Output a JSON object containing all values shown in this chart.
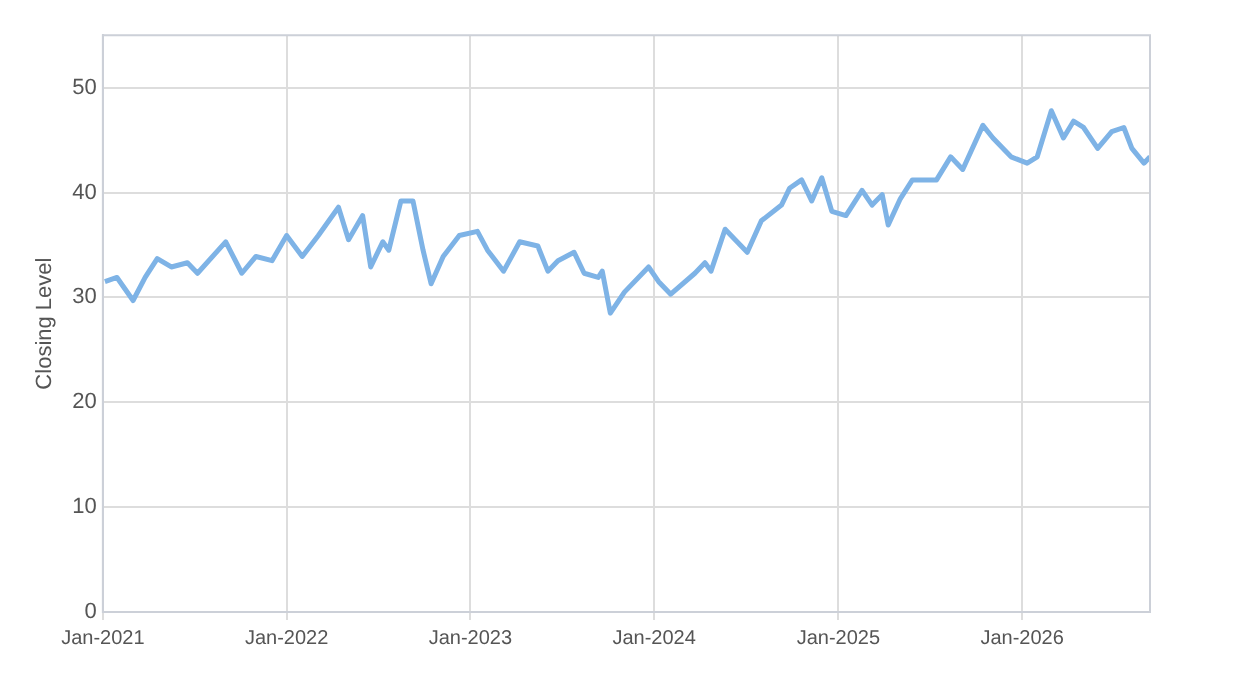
{
  "chart_data": {
    "type": "line",
    "ylabel": "Closing Level",
    "ylim": [
      0,
      55
    ],
    "yticks": [
      0,
      10,
      20,
      30,
      40,
      50
    ],
    "xlim": [
      "2021-01-01",
      "2026-09-12"
    ],
    "xticks": [
      {
        "value": "2021-01-01",
        "label": "Jan-2021"
      },
      {
        "value": "2022-01-01",
        "label": "Jan-2022"
      },
      {
        "value": "2023-01-01",
        "label": "Jan-2023"
      },
      {
        "value": "2024-01-01",
        "label": "Jan-2024"
      },
      {
        "value": "2025-01-01",
        "label": "Jan-2025"
      },
      {
        "value": "2026-01-01",
        "label": "Jan-2026"
      }
    ],
    "grid": true,
    "legend": false,
    "marker": "none",
    "line_style": "solid",
    "x": [
      "2021-01-05",
      "2021-01-29",
      "2021-03-02",
      "2021-03-26",
      "2021-04-19",
      "2021-05-17",
      "2021-06-18",
      "2021-07-08",
      "2021-09-02",
      "2021-10-04",
      "2021-11-01",
      "2021-12-03",
      "2022-01-01",
      "2022-02-01",
      "2022-03-05",
      "2022-04-14",
      "2022-05-04",
      "2022-06-01",
      "2022-06-17",
      "2022-07-11",
      "2022-07-23",
      "2022-08-16",
      "2022-09-09",
      "2022-09-29",
      "2022-10-15",
      "2022-11-08",
      "2022-12-10",
      "2023-01-15",
      "2023-02-04",
      "2023-03-08",
      "2023-04-09",
      "2023-05-15",
      "2023-06-04",
      "2023-06-24",
      "2023-07-26",
      "2023-08-15",
      "2023-09-12",
      "2023-09-20",
      "2023-10-06",
      "2023-11-03",
      "2023-12-21",
      "2024-01-10",
      "2024-02-03",
      "2024-03-22",
      "2024-04-11",
      "2024-04-23",
      "2024-05-21",
      "2024-06-10",
      "2024-07-04",
      "2024-08-01",
      "2024-09-10",
      "2024-09-26",
      "2024-10-20",
      "2024-11-09",
      "2024-11-29",
      "2024-12-19",
      "2025-01-16",
      "2025-02-17",
      "2025-03-09",
      "2025-03-29",
      "2025-04-10",
      "2025-05-04",
      "2025-05-28",
      "2025-07-15",
      "2025-08-12",
      "2025-09-05",
      "2025-10-15",
      "2025-11-04",
      "2025-12-10",
      "2026-01-11",
      "2026-01-31",
      "2026-02-28",
      "2026-03-24",
      "2026-04-13",
      "2026-05-03",
      "2026-05-31",
      "2026-06-28",
      "2026-07-22",
      "2026-08-07",
      "2026-08-31",
      "2026-09-12"
    ],
    "series": [
      {
        "color": "#7eb3e6",
        "values": [
          31.5,
          31.9,
          29.7,
          31.9,
          33.7,
          32.9,
          33.3,
          32.3,
          35.3,
          32.3,
          33.9,
          33.5,
          35.9,
          33.9,
          35.9,
          38.6,
          35.5,
          37.8,
          32.9,
          35.3,
          34.5,
          39.2,
          39.2,
          34.5,
          31.3,
          33.9,
          35.9,
          36.3,
          34.5,
          32.5,
          35.3,
          34.9,
          32.5,
          33.5,
          34.3,
          32.3,
          31.9,
          32.5,
          28.5,
          30.5,
          32.9,
          31.5,
          30.3,
          32.3,
          33.3,
          32.5,
          36.5,
          35.5,
          34.3,
          37.3,
          38.8,
          40.4,
          41.2,
          39.2,
          41.4,
          38.2,
          37.8,
          40.2,
          38.8,
          39.8,
          36.9,
          39.4,
          41.2,
          41.2,
          43.4,
          42.2,
          46.4,
          45.2,
          43.4,
          42.8,
          43.4,
          47.8,
          45.2,
          46.8,
          46.2,
          44.2,
          45.8,
          46.2,
          44.2,
          42.8,
          43.4
        ]
      }
    ]
  }
}
